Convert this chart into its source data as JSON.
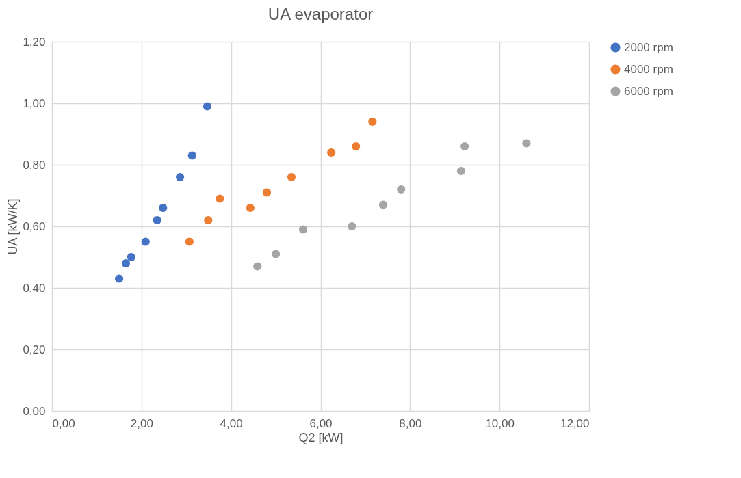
{
  "chart_data": {
    "type": "scatter",
    "title": "UA evaporator",
    "xlabel": "Q2 [kW]",
    "ylabel": "UA [kW/K]",
    "xlim": [
      0,
      12
    ],
    "ylim": [
      0,
      1.2
    ],
    "xticks": [
      {
        "value": 0,
        "label": "0,00"
      },
      {
        "value": 2,
        "label": "2,00"
      },
      {
        "value": 4,
        "label": "4,00"
      },
      {
        "value": 6,
        "label": "6,00"
      },
      {
        "value": 8,
        "label": "8,00"
      },
      {
        "value": 10,
        "label": "10,00"
      },
      {
        "value": 12,
        "label": "12,00"
      }
    ],
    "yticks": [
      {
        "value": 0,
        "label": "0,00"
      },
      {
        "value": 0.2,
        "label": "0,20"
      },
      {
        "value": 0.4,
        "label": "0,40"
      },
      {
        "value": 0.6,
        "label": "0,60"
      },
      {
        "value": 0.8,
        "label": "0,80"
      },
      {
        "value": 1,
        "label": "1,00"
      },
      {
        "value": 1.2,
        "label": "1,20"
      }
    ],
    "grid": true,
    "legend": "right",
    "marker": "circle",
    "series": [
      {
        "name": "2000 rpm",
        "color": "#4472c4",
        "x": [
          1.5,
          1.65,
          1.77,
          2.09,
          2.35,
          2.48,
          2.86,
          3.13,
          3.47
        ],
        "values": [
          0.43,
          0.48,
          0.5,
          0.55,
          0.62,
          0.66,
          0.76,
          0.83,
          0.99
        ]
      },
      {
        "name": "4000 rpm",
        "color": "#ed7d31",
        "x": [
          3.07,
          3.49,
          3.75,
          4.43,
          4.8,
          5.35,
          6.24,
          6.79,
          7.16
        ],
        "values": [
          0.55,
          0.62,
          0.69,
          0.66,
          0.71,
          0.76,
          0.84,
          0.86,
          0.94
        ]
      },
      {
        "name": "6000 rpm",
        "color": "#a5a5a5",
        "x": [
          4.59,
          5.0,
          5.61,
          6.7,
          7.4,
          7.8,
          9.14,
          9.22,
          10.6
        ],
        "values": [
          0.47,
          0.51,
          0.59,
          0.6,
          0.67,
          0.72,
          0.78,
          0.86,
          0.87
        ]
      }
    ]
  }
}
